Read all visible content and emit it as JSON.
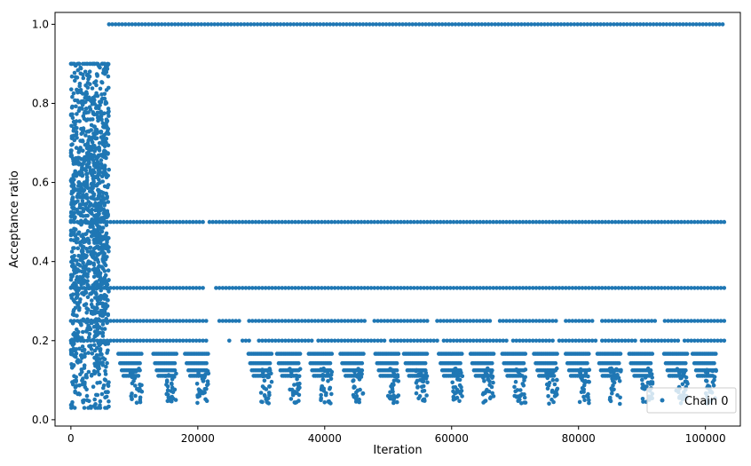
{
  "chart_data": {
    "type": "scatter",
    "xlabel": "Iteration",
    "ylabel": "Acceptance ratio",
    "xlim": [
      -2500,
      105500
    ],
    "ylim": [
      -0.016,
      1.03
    ],
    "x_ticks": [
      0,
      20000,
      40000,
      60000,
      80000,
      100000
    ],
    "x_tick_labels": [
      "0",
      "20000",
      "40000",
      "60000",
      "80000",
      "100000"
    ],
    "y_ticks": [
      0.0,
      0.2,
      0.4,
      0.6,
      0.8,
      1.0
    ],
    "y_tick_labels": [
      "0.0",
      "0.2",
      "0.4",
      "0.6",
      "0.8",
      "1.0"
    ],
    "grid": false,
    "legend_position": "lower-right",
    "x_range": [
      0,
      103000
    ],
    "series": [
      {
        "name": "Chain 0",
        "color": "#1f77b4",
        "marker": "circle",
        "description_values": {
          "burn_in_x_range": [
            0,
            6000
          ],
          "burn_in_y_range": [
            0.03,
            0.9
          ],
          "levels": [
            {
              "y": 1.0,
              "x_range": [
                6000,
                103000
              ],
              "gaps": []
            },
            {
              "y": 0.5,
              "x_range": [
                0,
                103000
              ],
              "gaps": [
                [
                  21000,
                  21800
                ]
              ]
            },
            {
              "y": 0.3333,
              "x_range": [
                0,
                103000
              ],
              "gaps": [
                [
                  21000,
                  22800
                ]
              ]
            },
            {
              "y": 0.25,
              "x_range": [
                0,
                103000
              ],
              "gaps": [
                [
                  21500,
                  23000
                ],
                [
                  27000,
                  28000
                ],
                [
                  46500,
                  47500
                ],
                [
                  56500,
                  57500
                ],
                [
                  66500,
                  67500
                ],
                [
                  76500,
                  77500
                ],
                [
                  82500,
                  83500
                ],
                [
                  92500,
                  93500
                ]
              ]
            },
            {
              "y": 0.2,
              "x_range": [
                0,
                103000
              ],
              "gaps": [
                [
                  21500,
                  24500
                ],
                [
                  25000,
                  27000
                ],
                [
                  28500,
                  29500
                ],
                [
                  38000,
                  38700
                ],
                [
                  49500,
                  50200
                ],
                [
                  58000,
                  58500
                ],
                [
                  69000,
                  69600
                ],
                [
                  76000,
                  76500
                ],
                [
                  83000,
                  83600
                ],
                [
                  89000,
                  89500
                ],
                [
                  96000,
                  96500
                ]
              ]
            },
            {
              "y": 0.1667,
              "x_range": [
                0,
                103000
              ],
              "segments_only": true
            },
            {
              "y": 0.1429,
              "x_range": [
                0,
                103000
              ],
              "segments_only": true
            },
            {
              "y": 0.125,
              "x_range": [
                0,
                103000
              ],
              "segments_only": true
            },
            {
              "y": 0.1111,
              "x_range": [
                0,
                103000
              ],
              "segments_only": true
            }
          ],
          "low_clusters_centers": [
            10000,
            15500,
            20500,
            30500,
            35000,
            40000,
            45000,
            50500,
            55000,
            60500,
            65500,
            70500,
            75500,
            80500,
            85500,
            90500,
            96000,
            100500
          ]
        }
      }
    ]
  }
}
